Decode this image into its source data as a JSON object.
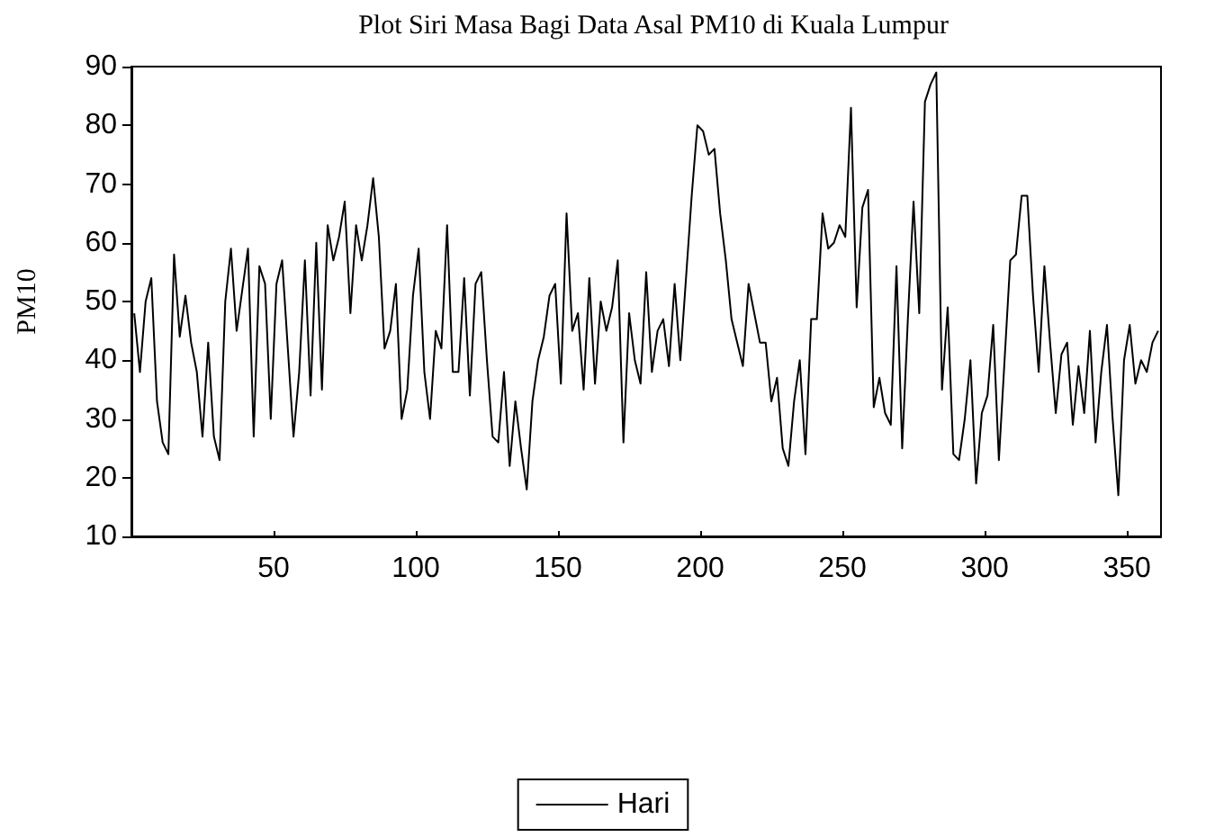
{
  "chart_data": {
    "type": "line",
    "title": "Plot Siri Masa Bagi Data Asal PM10 di Kuala Lumpur",
    "ylabel": "PM10",
    "x": [
      1,
      3,
      5,
      7,
      9,
      11,
      13,
      15,
      17,
      19,
      21,
      23,
      25,
      27,
      29,
      31,
      33,
      35,
      37,
      39,
      41,
      43,
      45,
      47,
      49,
      51,
      53,
      55,
      57,
      59,
      61,
      63,
      65,
      67,
      69,
      71,
      73,
      75,
      77,
      79,
      81,
      83,
      85,
      87,
      89,
      91,
      93,
      95,
      97,
      99,
      101,
      103,
      105,
      107,
      109,
      111,
      113,
      115,
      117,
      119,
      121,
      123,
      125,
      127,
      129,
      131,
      133,
      135,
      137,
      139,
      141,
      143,
      145,
      147,
      149,
      151,
      153,
      155,
      157,
      159,
      161,
      163,
      165,
      167,
      169,
      171,
      173,
      175,
      177,
      179,
      181,
      183,
      185,
      187,
      189,
      191,
      193,
      195,
      197,
      199,
      201,
      203,
      205,
      207,
      209,
      211,
      213,
      215,
      217,
      219,
      221,
      223,
      225,
      227,
      229,
      231,
      233,
      235,
      237,
      239,
      241,
      243,
      245,
      247,
      249,
      251,
      253,
      255,
      257,
      259,
      261,
      263,
      265,
      267,
      269,
      271,
      273,
      275,
      277,
      279,
      281,
      283,
      285,
      287,
      289,
      291,
      293,
      295,
      297,
      299,
      301,
      303,
      305,
      307,
      309,
      311,
      313,
      315,
      317,
      319,
      321,
      323,
      325,
      327,
      329,
      331,
      333,
      335,
      337,
      339,
      341,
      343,
      345,
      347,
      349,
      351,
      353,
      355,
      357,
      359,
      361
    ],
    "series": [
      {
        "name": "Hari",
        "color": "#000000",
        "values": [
          48,
          38,
          50,
          54,
          33,
          26,
          24,
          58,
          44,
          51,
          43,
          38,
          27,
          43,
          27,
          23,
          50,
          59,
          45,
          52,
          59,
          27,
          56,
          53,
          30,
          53,
          57,
          42,
          27,
          38,
          57,
          34,
          60,
          35,
          63,
          57,
          61,
          67,
          48,
          63,
          57,
          63,
          71,
          61,
          42,
          45,
          53,
          30,
          35,
          51,
          59,
          38,
          30,
          45,
          42,
          63,
          38,
          38,
          54,
          34,
          53,
          55,
          40,
          27,
          26,
          38,
          22,
          33,
          25,
          18,
          33,
          40,
          44,
          51,
          53,
          36,
          65,
          45,
          48,
          35,
          54,
          36,
          50,
          45,
          49,
          57,
          26,
          48,
          40,
          36,
          55,
          38,
          45,
          47,
          39,
          53,
          40,
          54,
          68,
          80,
          79,
          75,
          76,
          65,
          57,
          47,
          43,
          39,
          53,
          48,
          43,
          43,
          33,
          37,
          25,
          22,
          33,
          40,
          24,
          47,
          47,
          65,
          59,
          60,
          63,
          61,
          83,
          49,
          66,
          69,
          32,
          37,
          31,
          29,
          56,
          25,
          47,
          67,
          48,
          84,
          87,
          89,
          35,
          49,
          24,
          23,
          30,
          40,
          19,
          31,
          34,
          46,
          23,
          40,
          57,
          58,
          68,
          68,
          51,
          38,
          56,
          43,
          31,
          41,
          43,
          29,
          39,
          31,
          45,
          26,
          38,
          46,
          30,
          17,
          40,
          46,
          36,
          40,
          38,
          43,
          45
        ]
      }
    ],
    "xlim": [
      0,
      362
    ],
    "xticks": [
      50,
      100,
      150,
      200,
      250,
      300,
      350
    ],
    "ylim": [
      10,
      90
    ],
    "yticks": [
      10,
      20,
      30,
      40,
      50,
      60,
      70,
      80,
      90
    ],
    "grid": false,
    "legend": "bottom",
    "marker": "none",
    "line_style": "solid"
  }
}
